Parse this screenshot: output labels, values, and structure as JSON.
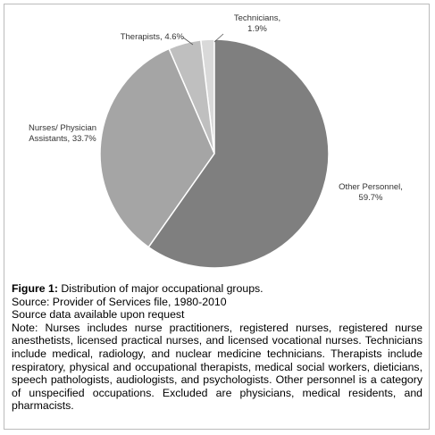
{
  "chart_data": {
    "type": "pie",
    "categories": [
      "Other Personnel,",
      "Nurses/ Physician Assistants,",
      "Therapists,",
      "Technicians,"
    ],
    "values": [
      59.7,
      33.7,
      4.6,
      1.9
    ],
    "value_labels": [
      "59.7%",
      "33.7%",
      "4.6%",
      "1.9%"
    ],
    "colors": [
      "#7f7f7f",
      "#a5a5a5",
      "#bfbfbf",
      "#d9d9d9"
    ],
    "figure_label": "Figure 1:",
    "title": "Distribution of major occupational groups.",
    "notes": [
      "Source: Provider of Services file, 1980-2010",
      "Source data available upon request",
      "Note: Nurses includes nurse practitioners, registered nurses, registered nurse anesthetists, licensed practical nurses, and licensed vocational nurses. Technicians include medical, radiology, and nuclear medicine technicians. Therapists include respiratory, physical and occupational therapists, medical social workers, dieticians, speech pathologists, audiologists, and psychologists. Other personnel is a category of unspecified occupations. Excluded are physicians, medical residents, and pharmacists."
    ]
  }
}
